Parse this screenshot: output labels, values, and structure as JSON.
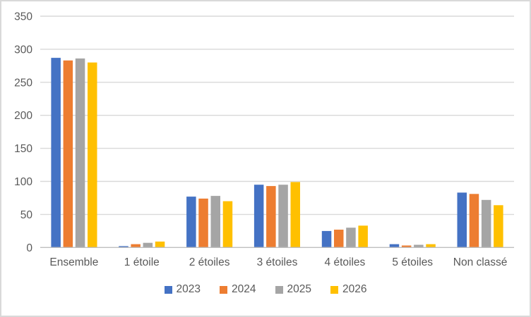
{
  "chart_data": {
    "type": "bar",
    "title": "",
    "xlabel": "",
    "ylabel": "",
    "categories": [
      "Ensemble",
      "1 étoile",
      "2 étoiles",
      "3 étoiles",
      "4 étoiles",
      "5 étoiles",
      "Non classé"
    ],
    "series": [
      {
        "name": "2023",
        "color": "#4472C4",
        "values": [
          287,
          2,
          77,
          95,
          25,
          5,
          83
        ]
      },
      {
        "name": "2024",
        "color": "#ED7D31",
        "values": [
          283,
          5,
          74,
          93,
          27,
          3,
          81
        ]
      },
      {
        "name": "2025",
        "color": "#A5A5A5",
        "values": [
          286,
          7,
          78,
          95,
          30,
          4,
          72
        ]
      },
      {
        "name": "2026",
        "color": "#FFC000",
        "values": [
          280,
          9,
          70,
          99,
          33,
          5,
          64
        ]
      }
    ],
    "ylim": [
      0,
      350
    ],
    "yticks": [
      0,
      50,
      100,
      150,
      200,
      250,
      300,
      350
    ],
    "grid": true,
    "legend_position": "bottom",
    "styling": {
      "gridline_color": "#D9D9D9",
      "axis_line_color": "#BFBFBF",
      "tick_label_color": "#595959",
      "border_color": "#D9D9D9",
      "background": "#FFFFFF"
    }
  }
}
